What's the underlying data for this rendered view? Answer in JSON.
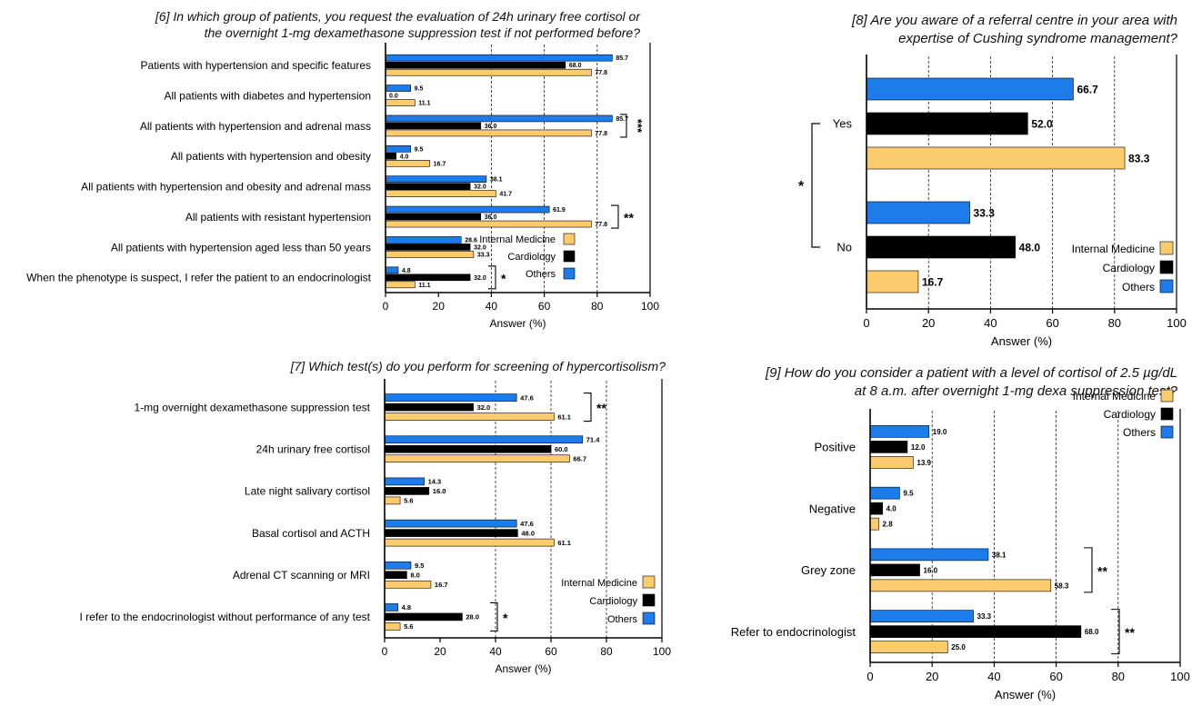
{
  "colors": {
    "internal_medicine": "#FCCB6E",
    "cardiology": "#000000",
    "others": "#1E7BEA",
    "axis": "#000000",
    "grid": "#000000"
  },
  "chart_data": [
    {
      "id": "q6",
      "type": "bar",
      "orientation": "horizontal",
      "title_line1": "[6] In which group of patients, you request the evaluation of 24h urinary free cortisol or",
      "title_line2": "the overnight 1-mg dexamethasone suppression test if not performed before?",
      "xlabel": "Answer (%)",
      "xlim": [
        0,
        100
      ],
      "xticks": [
        "0",
        "20",
        "40",
        "60",
        "80",
        "100"
      ],
      "grid": "dashed at 40, 60, 80",
      "legend_placement": "bottom-right",
      "legend": [
        "Internal Medicine",
        "Cardiology",
        "Others"
      ],
      "categories": [
        "Patients with hypertension and specific features",
        "All patients with diabetes and hypertension",
        "All patients with hypertension and adrenal mass",
        "All patients with hypertension and obesity",
        "All patients with hypertension and obesity and adrenal mass",
        "All patients with resistant hypertension",
        "All patients with hypertension aged less than 50 years",
        "When the phenotype is suspect, I refer the patient to an endocrinologist"
      ],
      "series": [
        {
          "name": "Others",
          "key": "others",
          "values": [
            85.7,
            9.5,
            85.7,
            9.5,
            38.1,
            61.9,
            28.6,
            4.8
          ],
          "labels": [
            "85.7",
            "9.5",
            "85.7",
            "9.5",
            "38.1",
            "61.9",
            "28.6",
            "4.8"
          ]
        },
        {
          "name": "Cardiology",
          "key": "cardiology",
          "values": [
            68.0,
            0.0,
            36.0,
            4.0,
            32.0,
            36.0,
            32.0,
            32.0
          ],
          "labels": [
            "68.0",
            "0.0",
            "36.0",
            "4.0",
            "32.0",
            "36.0",
            "32.0",
            "32.0"
          ]
        },
        {
          "name": "Internal Medicine",
          "key": "internal_medicine",
          "values": [
            77.8,
            11.1,
            77.8,
            16.7,
            41.7,
            77.8,
            33.3,
            11.1
          ],
          "labels": [
            "77.8",
            "11.1",
            "77.8",
            "16.7",
            "41.7",
            "77.8",
            "33.3",
            "11.1"
          ]
        }
      ],
      "significance": [
        {
          "category_index": 2,
          "mark": "***"
        },
        {
          "category_index": 5,
          "mark": "**"
        },
        {
          "category_index": 7,
          "mark": "*"
        }
      ]
    },
    {
      "id": "q7",
      "type": "bar",
      "orientation": "horizontal",
      "title_line1": "[7] Which test(s) do you perform for screening of hypercortisolism?",
      "title_line2": "",
      "xlabel": "Answer (%)",
      "xlim": [
        0,
        100
      ],
      "xticks": [
        "0",
        "20",
        "40",
        "60",
        "80",
        "100"
      ],
      "grid": "dashed at 40, 60, 80",
      "legend_placement": "bottom-right",
      "legend": [
        "Internal Medicine",
        "Cardiology",
        "Others"
      ],
      "categories": [
        "1-mg overnight dexamethasone suppression test",
        "24h urinary free cortisol",
        "Late night salivary cortisol",
        "Basal cortisol and ACTH",
        "Adrenal CT scanning or MRI",
        "I refer to the endocrinologist without performance of any test"
      ],
      "series": [
        {
          "name": "Others",
          "key": "others",
          "values": [
            47.6,
            71.4,
            14.3,
            47.6,
            9.5,
            4.8
          ],
          "labels": [
            "47.6",
            "71.4",
            "14.3",
            "47.6",
            "9.5",
            "4.8"
          ]
        },
        {
          "name": "Cardiology",
          "key": "cardiology",
          "values": [
            32.0,
            60.0,
            16.0,
            48.0,
            8.0,
            28.0
          ],
          "labels": [
            "32.0",
            "60.0",
            "16.0",
            "48.0",
            "8.0",
            "28.0"
          ]
        },
        {
          "name": "Internal Medicine",
          "key": "internal_medicine",
          "values": [
            61.1,
            66.7,
            5.6,
            61.1,
            16.7,
            5.6
          ],
          "labels": [
            "61.1",
            "66.7",
            "5.6",
            "61.1",
            "16.7",
            "5.6"
          ]
        }
      ],
      "significance": [
        {
          "category_index": 0,
          "mark": "**"
        },
        {
          "category_index": 5,
          "mark": "*"
        }
      ]
    },
    {
      "id": "q8",
      "type": "bar",
      "orientation": "horizontal",
      "title_line1": "[8] Are you aware of a referral centre in your area with",
      "title_line2": "expertise of Cushing syndrome management?",
      "xlabel": "Answer (%)",
      "xlim": [
        0,
        100
      ],
      "xticks": [
        "0",
        "20",
        "40",
        "60",
        "80",
        "100"
      ],
      "grid": "dashed at 20, 40, 60, 80",
      "legend_placement": "bottom-right",
      "legend": [
        "Internal Medicine",
        "Cardiology",
        "Others"
      ],
      "categories": [
        "Yes",
        "No"
      ],
      "series": [
        {
          "name": "Others",
          "key": "others",
          "values": [
            66.7,
            33.3
          ],
          "labels": [
            "66.7",
            "33.3"
          ]
        },
        {
          "name": "Cardiology",
          "key": "cardiology",
          "values": [
            52.0,
            48.0
          ],
          "labels": [
            "52.0",
            "48.0"
          ]
        },
        {
          "name": "Internal Medicine",
          "key": "internal_medicine",
          "values": [
            83.3,
            16.7
          ],
          "labels": [
            "83.3",
            "16.7"
          ]
        }
      ],
      "significance": [
        {
          "span": "Yes-No",
          "mark": "*"
        }
      ]
    },
    {
      "id": "q9",
      "type": "bar",
      "orientation": "horizontal",
      "title_line1": "[9] How do you consider a patient with a level of cortisol of 2.5 µg/dL",
      "title_line2": "at 8 a.m. after overnight 1-mg dexa suppression test?",
      "xlabel": "Answer (%)",
      "xlim": [
        0,
        100
      ],
      "xticks": [
        "0",
        "20",
        "40",
        "60",
        "80",
        "100"
      ],
      "grid": "dashed at 20, 40, 60, 80",
      "legend_placement": "top-right",
      "legend": [
        "Internal Medicine",
        "Cardiology",
        "Others"
      ],
      "categories": [
        "Positive",
        "Negative",
        "Grey zone",
        "Refer to endocrinologist"
      ],
      "series": [
        {
          "name": "Others",
          "key": "others",
          "values": [
            19.0,
            9.5,
            38.1,
            33.3
          ],
          "labels": [
            "19.0",
            "9.5",
            "38.1",
            "33.3"
          ]
        },
        {
          "name": "Cardiology",
          "key": "cardiology",
          "values": [
            12.0,
            4.0,
            16.0,
            68.0
          ],
          "labels": [
            "12.0",
            "4.0",
            "16.0",
            "68.0"
          ]
        },
        {
          "name": "Internal Medicine",
          "key": "internal_medicine",
          "values": [
            13.9,
            2.8,
            58.3,
            25.0
          ],
          "labels": [
            "13.9",
            "2.8",
            "58.3",
            "25.0"
          ]
        }
      ],
      "significance": [
        {
          "category_index": 2,
          "mark": "**"
        },
        {
          "category_index": 3,
          "mark": "**"
        }
      ]
    }
  ]
}
